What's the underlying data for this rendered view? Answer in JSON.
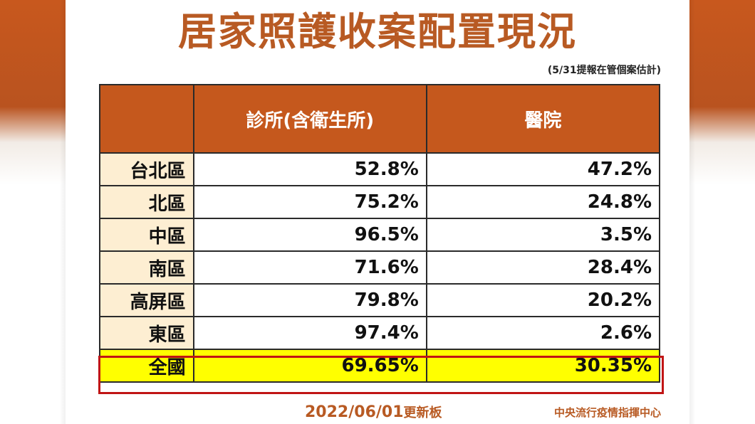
{
  "title": "居家照護收案配置現況",
  "note": "(5/31提報在管個案估計)",
  "table": {
    "headers": [
      "",
      "診所(含衛生所)",
      "醫院"
    ],
    "rows": [
      {
        "region": "台北區",
        "clinic": "52.8%",
        "hospital": "47.2%"
      },
      {
        "region": "北區",
        "clinic": "75.2%",
        "hospital": "24.8%"
      },
      {
        "region": "中區",
        "clinic": "96.5%",
        "hospital": "3.5%"
      },
      {
        "region": "南區",
        "clinic": "71.6%",
        "hospital": "28.4%"
      },
      {
        "region": "高屏區",
        "clinic": "79.8%",
        "hospital": "20.2%"
      },
      {
        "region": "東區",
        "clinic": "97.4%",
        "hospital": "2.6%"
      }
    ],
    "total": {
      "region": "全國",
      "clinic": "69.65%",
      "hospital": "30.35%"
    }
  },
  "footer": {
    "date": "2022/06/01",
    "date_suffix": "更新板",
    "source": "中央流行疫情指揮中心"
  },
  "colors": {
    "header_bg": "#c5581d",
    "title": "#b85a23",
    "region_bg": "#fdeed2",
    "total_bg": "#ffff00",
    "total_border": "#c01515"
  }
}
